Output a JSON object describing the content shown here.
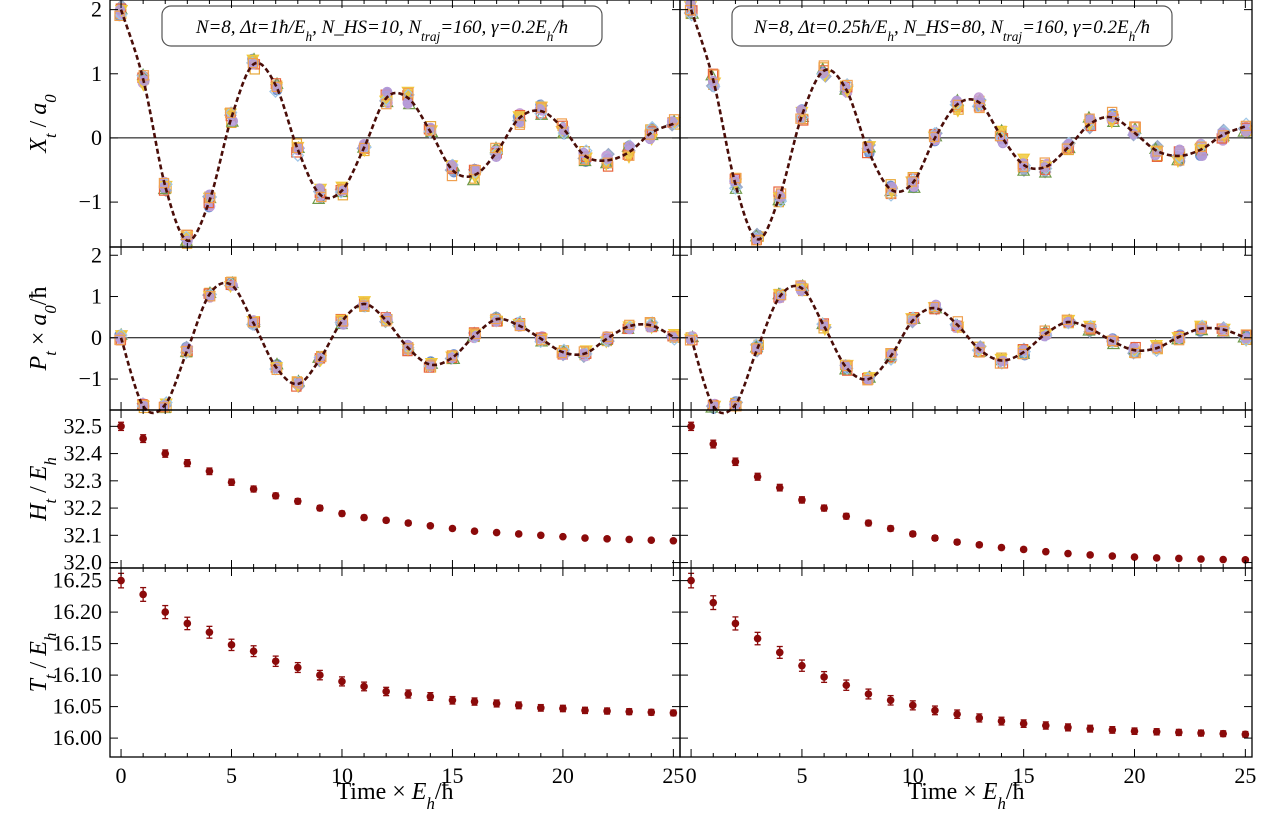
{
  "colors": {
    "exact_line": "#4a0d08",
    "dark_marker": "#8b0a0a",
    "frame": "#000000",
    "replicas": [
      "#6b8fd1",
      "#e8a838",
      "#9aa9c9",
      "#6e9a4a",
      "#c6a0d8",
      "#e8643c",
      "#f0c83c",
      "#9ec6e8",
      "#b49ad8",
      "#f0a050"
    ]
  },
  "xaxis": {
    "label": "Time × E_h/ħ",
    "ticks": [
      "0",
      "5",
      "10",
      "15",
      "20",
      "25"
    ]
  },
  "chart_data": [
    {
      "type": "scatter",
      "panel": "X left",
      "ylabel": "X_t / a_0",
      "annotation": "N=8, Δt=1ħ/E_h, N_HS=10, N_traj=160, γ=0.2E_h/ħ",
      "xlim": [
        -0.5,
        25.3
      ],
      "ylim": [
        -1.7,
        2.15
      ],
      "yticks": [
        "−1",
        "0",
        "1",
        "2"
      ],
      "x": [
        0,
        1,
        2,
        3,
        4,
        5,
        6,
        7,
        8,
        9,
        10,
        11,
        12,
        13,
        14,
        15,
        16,
        17,
        18,
        19,
        20,
        21,
        22,
        23,
        24,
        25
      ],
      "series": [
        {
          "values": [
            2.0,
            0.92,
            -0.75,
            -1.6,
            -0.98,
            0.32,
            1.15,
            0.82,
            -0.18,
            -0.88,
            -0.82,
            -0.15,
            0.62,
            0.62,
            0.1,
            -0.5,
            -0.58,
            -0.22,
            0.3,
            0.42,
            0.15,
            -0.28,
            -0.35,
            -0.22,
            0.08,
            0.22
          ]
        }
      ]
    },
    {
      "type": "scatter",
      "panel": "X right",
      "annotation": "N=8, Δt=0.25ħ/E_h, N_HS=80, N_traj=160, γ=0.2E_h/ħ",
      "xlim": [
        -0.5,
        25.3
      ],
      "ylim": [
        -1.7,
        2.15
      ],
      "x": [
        0,
        1,
        2,
        3,
        4,
        5,
        6,
        7,
        8,
        9,
        10,
        11,
        12,
        13,
        14,
        15,
        16,
        17,
        18,
        19,
        20,
        21,
        22,
        23,
        24,
        25
      ],
      "series": [
        {
          "values": [
            2.0,
            0.9,
            -0.72,
            -1.58,
            -0.9,
            0.35,
            1.05,
            0.75,
            -0.2,
            -0.8,
            -0.7,
            0.0,
            0.52,
            0.55,
            0.02,
            -0.42,
            -0.45,
            -0.15,
            0.22,
            0.32,
            0.08,
            -0.2,
            -0.28,
            -0.18,
            0.05,
            0.18
          ]
        }
      ]
    },
    {
      "type": "scatter",
      "panel": "P left",
      "ylabel": "P_t × a_0/ħ",
      "xlim": [
        -0.5,
        25.3
      ],
      "ylim": [
        -1.75,
        2.2
      ],
      "yticks": [
        "−1",
        "0",
        "1",
        "2"
      ],
      "x": [
        0,
        1,
        2,
        3,
        4,
        5,
        6,
        7,
        8,
        9,
        10,
        11,
        12,
        13,
        14,
        15,
        16,
        17,
        18,
        19,
        20,
        21,
        22,
        23,
        24,
        25
      ],
      "series": [
        {
          "values": [
            0.0,
            -1.65,
            -1.62,
            -0.3,
            1.05,
            1.28,
            0.35,
            -0.7,
            -1.12,
            -0.52,
            0.4,
            0.82,
            0.42,
            -0.25,
            -0.65,
            -0.48,
            0.05,
            0.45,
            0.3,
            -0.02,
            -0.35,
            -0.38,
            -0.02,
            0.28,
            0.3,
            0.02
          ]
        }
      ]
    },
    {
      "type": "scatter",
      "panel": "P right",
      "xlim": [
        -0.5,
        25.3
      ],
      "ylim": [
        -1.75,
        2.2
      ],
      "x": [
        0,
        1,
        2,
        3,
        4,
        5,
        6,
        7,
        8,
        9,
        10,
        11,
        12,
        13,
        14,
        15,
        16,
        17,
        18,
        19,
        20,
        21,
        22,
        23,
        24,
        25
      ],
      "series": [
        {
          "values": [
            0.0,
            -1.65,
            -1.62,
            -0.25,
            1.0,
            1.2,
            0.28,
            -0.72,
            -1.0,
            -0.45,
            0.42,
            0.72,
            0.32,
            -0.28,
            -0.55,
            -0.35,
            0.1,
            0.38,
            0.22,
            -0.08,
            -0.3,
            -0.25,
            0.02,
            0.22,
            0.2,
            0.0
          ]
        }
      ]
    },
    {
      "type": "scatter",
      "panel": "H left",
      "ylabel": "H_t / E_h",
      "xlim": [
        -0.5,
        25.3
      ],
      "ylim": [
        31.98,
        32.56
      ],
      "yticks": [
        "32.0",
        "32.1",
        "32.2",
        "32.3",
        "32.4",
        "32.5"
      ],
      "x": [
        0,
        1,
        2,
        3,
        4,
        5,
        6,
        7,
        8,
        9,
        10,
        11,
        12,
        13,
        14,
        15,
        16,
        17,
        18,
        19,
        20,
        21,
        22,
        23,
        24,
        25
      ],
      "series": [
        {
          "values": [
            32.5,
            32.455,
            32.4,
            32.365,
            32.335,
            32.295,
            32.27,
            32.245,
            32.225,
            32.2,
            32.18,
            32.165,
            32.155,
            32.145,
            32.135,
            32.125,
            32.115,
            32.11,
            32.105,
            32.1,
            32.095,
            32.09,
            32.087,
            32.085,
            32.082,
            32.08
          ]
        }
      ]
    },
    {
      "type": "scatter",
      "panel": "H right",
      "xlim": [
        -0.5,
        25.3
      ],
      "ylim": [
        31.98,
        32.56
      ],
      "x": [
        0,
        1,
        2,
        3,
        4,
        5,
        6,
        7,
        8,
        9,
        10,
        11,
        12,
        13,
        14,
        15,
        16,
        17,
        18,
        19,
        20,
        21,
        22,
        23,
        24,
        25
      ],
      "series": [
        {
          "values": [
            32.5,
            32.435,
            32.37,
            32.315,
            32.275,
            32.23,
            32.2,
            32.17,
            32.145,
            32.125,
            32.105,
            32.09,
            32.075,
            32.065,
            32.055,
            32.048,
            32.04,
            32.033,
            32.028,
            32.024,
            32.02,
            32.017,
            32.015,
            32.013,
            32.011,
            32.01
          ]
        }
      ]
    },
    {
      "type": "scatter",
      "panel": "T left",
      "ylabel": "T_t / E_h",
      "xlim": [
        -0.5,
        25.3
      ],
      "ylim": [
        15.97,
        16.27
      ],
      "yticks": [
        "16.00",
        "16.05",
        "16.10",
        "16.15",
        "16.20",
        "16.25"
      ],
      "x": [
        0,
        1,
        2,
        3,
        4,
        5,
        6,
        7,
        8,
        9,
        10,
        11,
        12,
        13,
        14,
        15,
        16,
        17,
        18,
        19,
        20,
        21,
        22,
        23,
        24,
        25
      ],
      "series": [
        {
          "values": [
            16.25,
            16.228,
            16.2,
            16.182,
            16.168,
            16.148,
            16.138,
            16.122,
            16.112,
            16.1,
            16.09,
            16.082,
            16.074,
            16.07,
            16.066,
            16.06,
            16.058,
            16.055,
            16.052,
            16.048,
            16.047,
            16.044,
            16.043,
            16.042,
            16.041,
            16.04
          ]
        }
      ]
    },
    {
      "type": "scatter",
      "panel": "T right",
      "xlim": [
        -0.5,
        25.3
      ],
      "ylim": [
        15.97,
        16.27
      ],
      "x": [
        0,
        1,
        2,
        3,
        4,
        5,
        6,
        7,
        8,
        9,
        10,
        11,
        12,
        13,
        14,
        15,
        16,
        17,
        18,
        19,
        20,
        21,
        22,
        23,
        24,
        25
      ],
      "series": [
        {
          "values": [
            16.25,
            16.215,
            16.182,
            16.158,
            16.136,
            16.115,
            16.097,
            16.084,
            16.07,
            16.06,
            16.052,
            16.044,
            16.038,
            16.032,
            16.027,
            16.023,
            16.02,
            16.017,
            16.015,
            16.013,
            16.011,
            16.01,
            16.009,
            16.008,
            16.007,
            16.006
          ]
        }
      ]
    }
  ]
}
